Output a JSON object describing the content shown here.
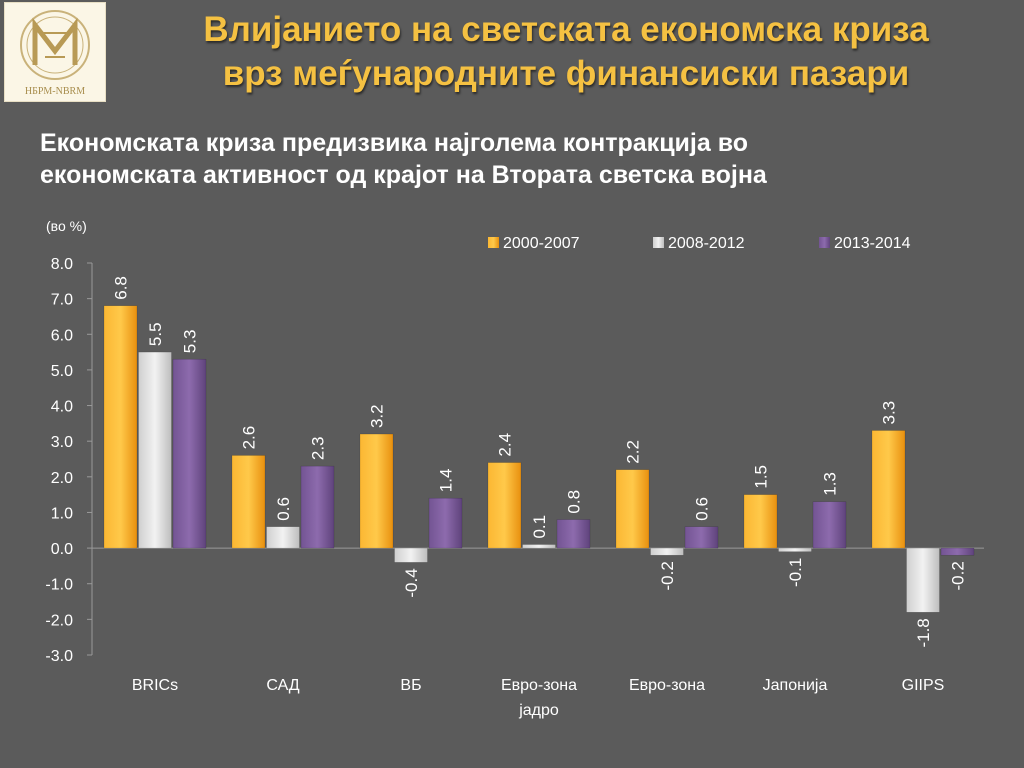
{
  "logo": {
    "text": "НБРМ-NBRM"
  },
  "title": {
    "line1": "Влијанието на светската економска криза",
    "line2": "врз меѓународните финансиски пазари"
  },
  "subtitle": {
    "line1": "Економската криза предизвика најголема контракција во",
    "line2": "економската активност од крајот на Втората светска војна"
  },
  "colors": {
    "background": "#5b5b5b",
    "title": "#f5c142",
    "s2000": "#f9a825",
    "s2008": "#d9d9d9",
    "s2013": "#7e5c9e"
  },
  "chart_data": {
    "type": "bar",
    "unit_label": "(во %)",
    "categories": [
      [
        "BRICs"
      ],
      [
        "САД"
      ],
      [
        "ВБ"
      ],
      [
        "Евро-зона",
        "јадро"
      ],
      [
        "Евро-зона"
      ],
      [
        "Јапонија"
      ],
      [
        "GIIPS"
      ]
    ],
    "series": [
      {
        "name": "2000-2007",
        "color": "#f9a825",
        "values": [
          6.8,
          2.6,
          3.2,
          2.4,
          2.2,
          1.5,
          3.3
        ]
      },
      {
        "name": "2008-2012",
        "color": "#d9d9d9",
        "values": [
          5.5,
          0.6,
          -0.4,
          0.1,
          -0.2,
          -0.1,
          -1.8
        ]
      },
      {
        "name": "2013-2014",
        "color": "#7e5c9e",
        "values": [
          5.3,
          2.3,
          1.4,
          0.8,
          0.6,
          1.3,
          -0.2
        ]
      }
    ],
    "ylim": [
      -3.0,
      8.0
    ],
    "yticks": [
      8.0,
      7.0,
      6.0,
      5.0,
      4.0,
      3.0,
      2.0,
      1.0,
      0.0,
      -1.0,
      -2.0,
      -3.0
    ],
    "legend_position": "top-right",
    "grid": false
  }
}
